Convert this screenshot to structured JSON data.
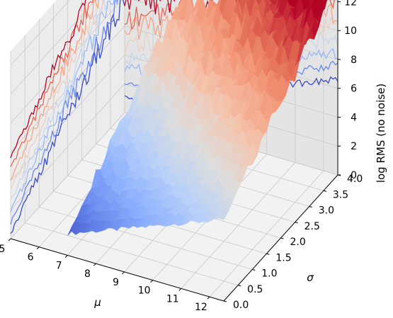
{
  "chart_data": {
    "type": "surface3d",
    "title": "",
    "xlabel": "μ",
    "ylabel": "σ",
    "zlabel": "log RMS (no noise)",
    "xlim": [
      5,
      12.5
    ],
    "ylim": [
      0,
      4
    ],
    "zlim": [
      0,
      13
    ],
    "xticks": [
      "5",
      "6",
      "7",
      "8",
      "9",
      "10",
      "11",
      "12"
    ],
    "yticks": [
      "0.0",
      "0.5",
      "1.0",
      "1.5",
      "2.0",
      "2.5",
      "3.0",
      "3.5",
      "4.0"
    ],
    "zticks": [
      "0",
      "2",
      "4",
      "6",
      "8",
      "10",
      "12"
    ],
    "colormap": "coolwarm",
    "surface_model": "log RMS ≈ 0.75·(μ − 5) + 1.9·σ, with jagged noise",
    "contour_projection_sigma_levels": [
      0.5,
      1.0,
      1.5,
      2.0,
      2.5,
      3.0,
      3.5,
      4.0
    ],
    "contour_projection_mu_levels": [
      5.5,
      6.5,
      7.5,
      8.5,
      9.5,
      10.5,
      11.5,
      12.5
    ],
    "grid": true
  },
  "colors": {
    "pane_left": "#ececec",
    "pane_right": "#e4e4e4",
    "pane_floor": "#f2f2f2",
    "grid": "#c9c9c9",
    "cool": "#3b4cc0",
    "neutral": "#dddddd",
    "warm": "#b40426"
  }
}
